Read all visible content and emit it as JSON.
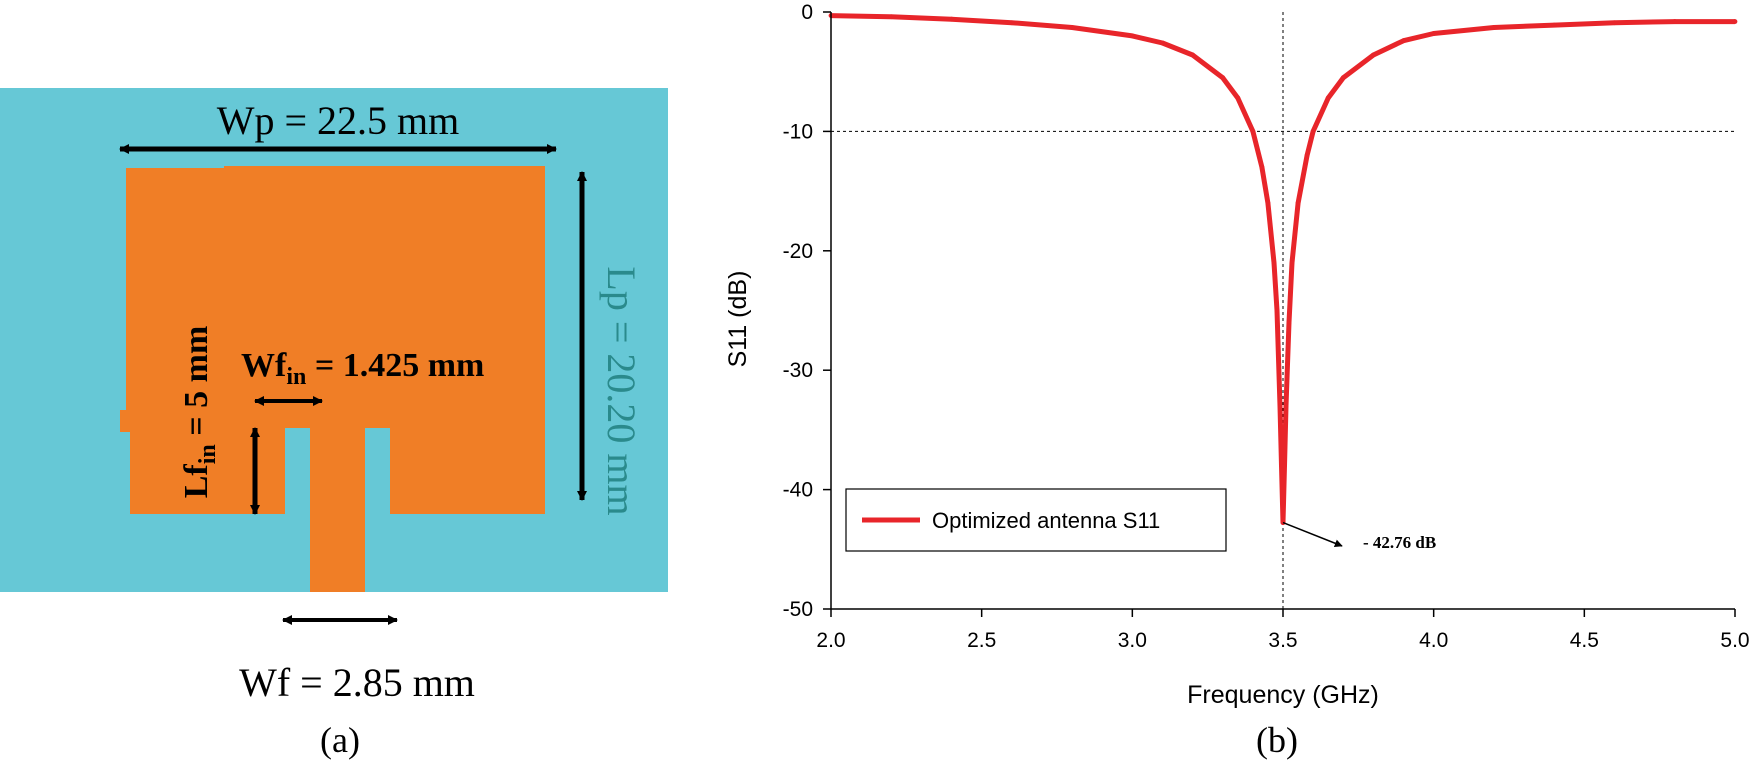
{
  "colors": {
    "substrate": "#66C8D6",
    "patch": "#F07E26",
    "curve": "#E8252A",
    "vertical_label_teal": "#2A8A8C",
    "arrow": "#000000",
    "grid": "#000000"
  },
  "panel_a": {
    "caption": "(a)",
    "labels": {
      "wp": "Wp = 22.5 mm",
      "lp": "Lp = 20.20 mm",
      "lf_base": "Lf",
      "lf_sub": "in",
      "lf_tail": " = 5 mm",
      "wfin_base": "Wf",
      "wfin_sub": "in",
      "wfin_tail": " = 1.425 mm",
      "wf": "Wf = 2.85 mm"
    }
  },
  "panel_b": {
    "caption": "(b)"
  },
  "chart_data": {
    "type": "line",
    "title": "",
    "xlabel": "Frequency (GHz)",
    "ylabel": "S11 (dB)",
    "xlim": [
      2.0,
      5.0
    ],
    "ylim": [
      -50,
      0
    ],
    "xticks": [
      2.0,
      2.5,
      3.0,
      3.5,
      4.0,
      4.5,
      5.0
    ],
    "xtick_labels": [
      "2.0",
      "2.5",
      "3.0",
      "3.5",
      "4.0",
      "4.5",
      "5.0"
    ],
    "yticks": [
      0,
      -10,
      -20,
      -30,
      -40,
      -50
    ],
    "ytick_labels": [
      "0",
      "-10",
      "-20",
      "-30",
      "-40",
      "-50"
    ],
    "reference_lines": {
      "horizontal_db": -10,
      "vertical_ghz": 3.5
    },
    "legend": {
      "placement": "bottom-left",
      "entry": "Optimized antenna S11"
    },
    "annotation": {
      "text": "- 42.76 dB",
      "x": 3.5,
      "y": -42.76
    },
    "series": [
      {
        "name": "Optimized antenna S11",
        "x": [
          2.0,
          2.2,
          2.4,
          2.6,
          2.8,
          3.0,
          3.1,
          3.2,
          3.3,
          3.35,
          3.4,
          3.43,
          3.45,
          3.47,
          3.48,
          3.49,
          3.495,
          3.5,
          3.505,
          3.51,
          3.52,
          3.53,
          3.55,
          3.58,
          3.6,
          3.65,
          3.7,
          3.8,
          3.9,
          4.0,
          4.2,
          4.4,
          4.6,
          4.8,
          5.0
        ],
        "values": [
          -0.3,
          -0.4,
          -0.6,
          -0.9,
          -1.3,
          -2.0,
          -2.6,
          -3.6,
          -5.5,
          -7.2,
          -10.0,
          -13.0,
          -16.0,
          -21.0,
          -25.0,
          -33.0,
          -38.0,
          -42.76,
          -38.0,
          -33.0,
          -26.0,
          -21.0,
          -16.0,
          -12.0,
          -10.0,
          -7.2,
          -5.5,
          -3.6,
          -2.4,
          -1.8,
          -1.3,
          -1.1,
          -0.9,
          -0.8,
          -0.8
        ]
      }
    ]
  }
}
